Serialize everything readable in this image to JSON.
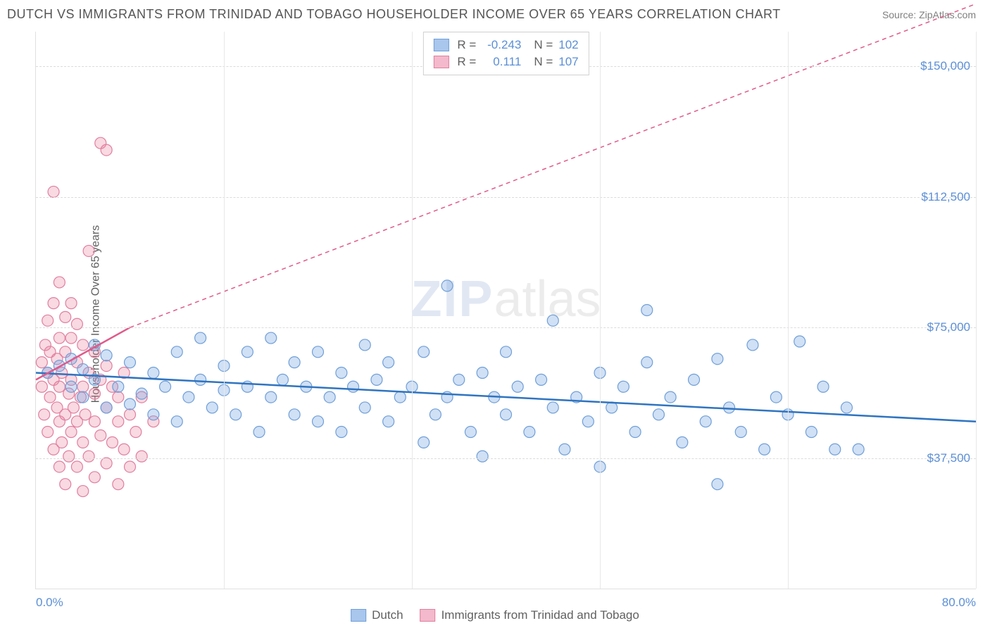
{
  "title": "DUTCH VS IMMIGRANTS FROM TRINIDAD AND TOBAGO HOUSEHOLDER INCOME OVER 65 YEARS CORRELATION CHART",
  "source": "Source: ZipAtlas.com",
  "y_axis_label": "Householder Income Over 65 years",
  "watermark_zip": "ZIP",
  "watermark_atlas": "atlas",
  "chart": {
    "type": "scatter",
    "xlim": [
      0,
      80
    ],
    "ylim": [
      0,
      160000
    ],
    "x_ticks": [
      0,
      16,
      32,
      48,
      64,
      80
    ],
    "x_tick_labels_shown": {
      "0": "0.0%",
      "80": "80.0%"
    },
    "y_ticks": [
      37500,
      75000,
      112500,
      150000
    ],
    "y_tick_labels": [
      "$37,500",
      "$75,000",
      "$112,500",
      "$150,000"
    ],
    "background_color": "#ffffff",
    "grid_color": "#dcdcdc",
    "marker_radius": 8,
    "marker_stroke_width": 1.2,
    "trend_line_width": 2.5,
    "series": [
      {
        "name": "Dutch",
        "fill_color": "rgba(120,165,225,0.35)",
        "stroke_color": "#6f9fd8",
        "swatch_fill": "#a9c6ed",
        "swatch_border": "#6f9fd8",
        "trend_color": "#2f74c0",
        "trend_dash": "none",
        "trend_start": [
          0,
          62000
        ],
        "trend_end": [
          80,
          48000
        ],
        "R": "-0.243",
        "N": "102",
        "points": [
          [
            1,
            62000
          ],
          [
            2,
            64000
          ],
          [
            3,
            58000
          ],
          [
            3,
            66000
          ],
          [
            4,
            55000
          ],
          [
            4,
            63000
          ],
          [
            5,
            60000
          ],
          [
            5,
            70000
          ],
          [
            6,
            52000
          ],
          [
            6,
            67000
          ],
          [
            7,
            58000
          ],
          [
            8,
            53000
          ],
          [
            8,
            65000
          ],
          [
            9,
            56000
          ],
          [
            10,
            50000
          ],
          [
            10,
            62000
          ],
          [
            11,
            58000
          ],
          [
            12,
            48000
          ],
          [
            12,
            68000
          ],
          [
            13,
            55000
          ],
          [
            14,
            60000
          ],
          [
            14,
            72000
          ],
          [
            15,
            52000
          ],
          [
            16,
            57000
          ],
          [
            16,
            64000
          ],
          [
            17,
            50000
          ],
          [
            18,
            58000
          ],
          [
            18,
            68000
          ],
          [
            19,
            45000
          ],
          [
            20,
            55000
          ],
          [
            20,
            72000
          ],
          [
            21,
            60000
          ],
          [
            22,
            50000
          ],
          [
            22,
            65000
          ],
          [
            23,
            58000
          ],
          [
            24,
            48000
          ],
          [
            24,
            68000
          ],
          [
            25,
            55000
          ],
          [
            26,
            62000
          ],
          [
            26,
            45000
          ],
          [
            27,
            58000
          ],
          [
            28,
            52000
          ],
          [
            28,
            70000
          ],
          [
            29,
            60000
          ],
          [
            30,
            48000
          ],
          [
            30,
            65000
          ],
          [
            31,
            55000
          ],
          [
            32,
            58000
          ],
          [
            33,
            42000
          ],
          [
            33,
            68000
          ],
          [
            34,
            50000
          ],
          [
            35,
            55000
          ],
          [
            35,
            87000
          ],
          [
            36,
            60000
          ],
          [
            37,
            45000
          ],
          [
            38,
            62000
          ],
          [
            38,
            38000
          ],
          [
            39,
            55000
          ],
          [
            40,
            50000
          ],
          [
            40,
            68000
          ],
          [
            41,
            58000
          ],
          [
            42,
            45000
          ],
          [
            43,
            60000
          ],
          [
            44,
            52000
          ],
          [
            44,
            77000
          ],
          [
            45,
            40000
          ],
          [
            46,
            55000
          ],
          [
            47,
            48000
          ],
          [
            48,
            62000
          ],
          [
            48,
            35000
          ],
          [
            49,
            52000
          ],
          [
            50,
            58000
          ],
          [
            51,
            45000
          ],
          [
            52,
            65000
          ],
          [
            52,
            80000
          ],
          [
            53,
            50000
          ],
          [
            54,
            55000
          ],
          [
            55,
            42000
          ],
          [
            56,
            60000
          ],
          [
            57,
            48000
          ],
          [
            58,
            66000
          ],
          [
            58,
            30000
          ],
          [
            59,
            52000
          ],
          [
            60,
            45000
          ],
          [
            61,
            70000
          ],
          [
            62,
            40000
          ],
          [
            63,
            55000
          ],
          [
            64,
            50000
          ],
          [
            65,
            71000
          ],
          [
            66,
            45000
          ],
          [
            67,
            58000
          ],
          [
            68,
            40000
          ],
          [
            69,
            52000
          ],
          [
            70,
            40000
          ]
        ]
      },
      {
        "name": "Immigrants from Trinidad and Tobago",
        "fill_color": "rgba(235,130,160,0.30)",
        "stroke_color": "#e07f9f",
        "swatch_fill": "#f4b9cc",
        "swatch_border": "#e07f9f",
        "trend_color": "#e05a8a",
        "trend_dash": "6,5",
        "trend_solid_end": [
          8,
          75000
        ],
        "trend_start": [
          0,
          60000
        ],
        "trend_end": [
          80,
          168000
        ],
        "R": "0.111",
        "N": "107",
        "points": [
          [
            0.5,
            58000
          ],
          [
            0.5,
            65000
          ],
          [
            0.7,
            50000
          ],
          [
            0.8,
            70000
          ],
          [
            1,
            45000
          ],
          [
            1,
            62000
          ],
          [
            1,
            77000
          ],
          [
            1.2,
            55000
          ],
          [
            1.2,
            68000
          ],
          [
            1.5,
            40000
          ],
          [
            1.5,
            60000
          ],
          [
            1.5,
            82000
          ],
          [
            1.5,
            114000
          ],
          [
            1.8,
            52000
          ],
          [
            1.8,
            66000
          ],
          [
            2,
            35000
          ],
          [
            2,
            48000
          ],
          [
            2,
            58000
          ],
          [
            2,
            72000
          ],
          [
            2,
            88000
          ],
          [
            2.2,
            42000
          ],
          [
            2.2,
            62000
          ],
          [
            2.5,
            30000
          ],
          [
            2.5,
            50000
          ],
          [
            2.5,
            68000
          ],
          [
            2.5,
            78000
          ],
          [
            2.8,
            38000
          ],
          [
            2.8,
            56000
          ],
          [
            3,
            45000
          ],
          [
            3,
            60000
          ],
          [
            3,
            72000
          ],
          [
            3,
            82000
          ],
          [
            3.2,
            52000
          ],
          [
            3.5,
            35000
          ],
          [
            3.5,
            48000
          ],
          [
            3.5,
            65000
          ],
          [
            3.5,
            76000
          ],
          [
            3.8,
            55000
          ],
          [
            4,
            28000
          ],
          [
            4,
            42000
          ],
          [
            4,
            58000
          ],
          [
            4,
            70000
          ],
          [
            4.2,
            50000
          ],
          [
            4.5,
            38000
          ],
          [
            4.5,
            62000
          ],
          [
            4.5,
            97000
          ],
          [
            5,
            32000
          ],
          [
            5,
            48000
          ],
          [
            5,
            56000
          ],
          [
            5,
            68000
          ],
          [
            5.5,
            44000
          ],
          [
            5.5,
            60000
          ],
          [
            5.5,
            128000
          ],
          [
            6,
            36000
          ],
          [
            6,
            52000
          ],
          [
            6,
            64000
          ],
          [
            6,
            126000
          ],
          [
            6.5,
            42000
          ],
          [
            6.5,
            58000
          ],
          [
            7,
            30000
          ],
          [
            7,
            48000
          ],
          [
            7,
            55000
          ],
          [
            7.5,
            40000
          ],
          [
            7.5,
            62000
          ],
          [
            8,
            35000
          ],
          [
            8,
            50000
          ],
          [
            8.5,
            45000
          ],
          [
            9,
            38000
          ],
          [
            9,
            55000
          ],
          [
            10,
            48000
          ]
        ]
      }
    ]
  }
}
